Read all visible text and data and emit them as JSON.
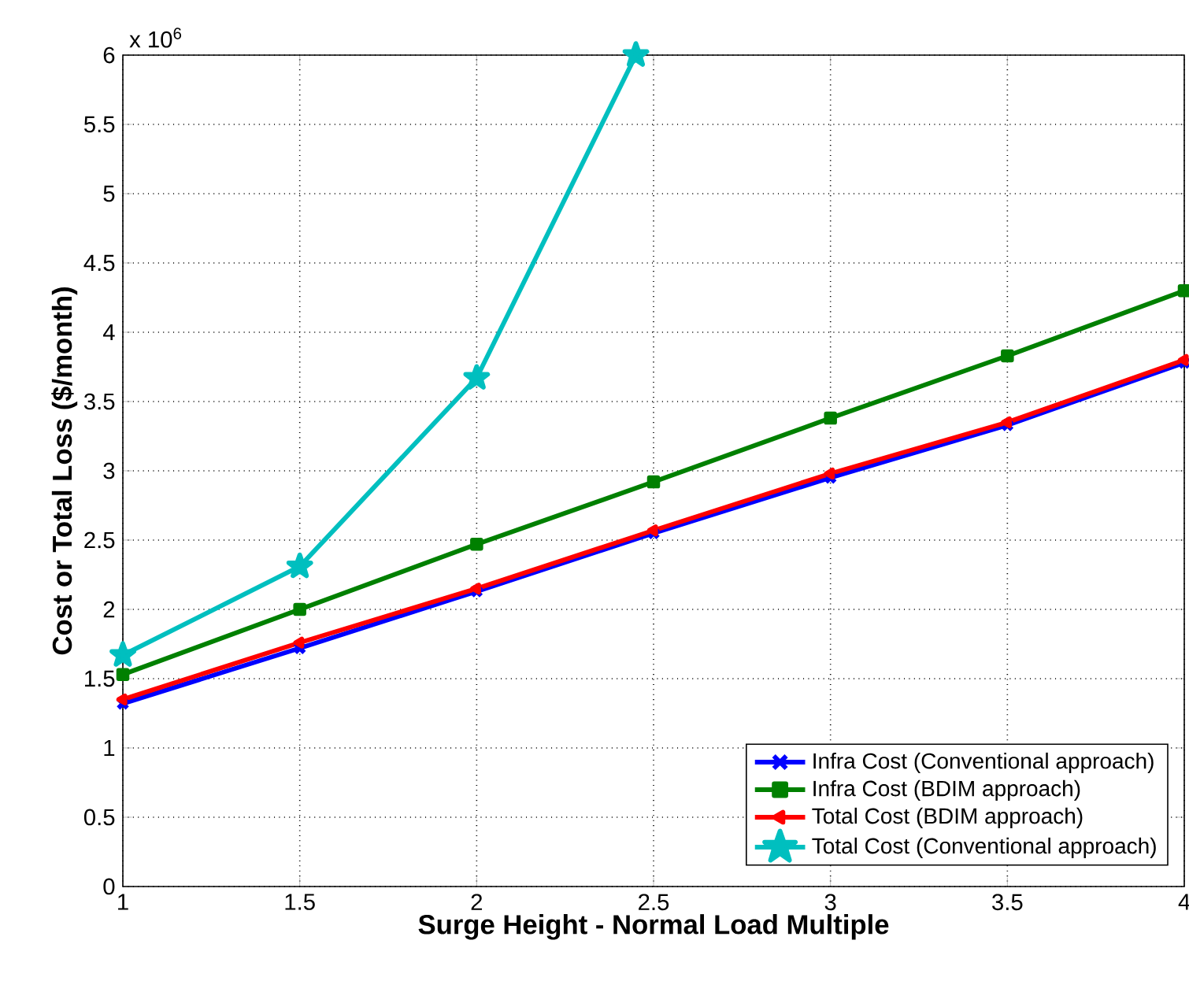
{
  "chart_data": {
    "type": "line",
    "xlabel": "Surge Height - Normal Load Multiple",
    "ylabel": "Cost or Total Loss ($/month)",
    "x": [
      1,
      1.5,
      2,
      2.5,
      3,
      3.5,
      4
    ],
    "series": [
      {
        "name": "Infra Cost (Conventional approach)",
        "color": "#0000ff",
        "marker": "cross",
        "values": [
          1.32,
          1.72,
          2.13,
          2.55,
          2.95,
          3.33,
          3.78
        ]
      },
      {
        "name": "Infra Cost (BDIM approach)",
        "color": "#008000",
        "marker": "square",
        "values": [
          1.53,
          2.0,
          2.47,
          2.92,
          3.38,
          3.83,
          4.3
        ]
      },
      {
        "name": "Total Cost (BDIM approach)",
        "color": "#ff0000",
        "marker": "triangle",
        "values": [
          1.35,
          1.76,
          2.15,
          2.57,
          2.98,
          3.35,
          3.8
        ]
      },
      {
        "name": "Total Cost (Conventional approach)",
        "color": "#00bfbf",
        "marker": "star",
        "x": [
          1,
          1.5,
          2,
          2.45
        ],
        "values": [
          1.67,
          2.31,
          3.67,
          6.0
        ]
      }
    ],
    "xlim": [
      1,
      4
    ],
    "xticks": [
      1,
      1.5,
      2,
      2.5,
      3,
      3.5,
      4
    ],
    "ylim": [
      0,
      6
    ],
    "yticks": [
      0,
      0.5,
      1,
      1.5,
      2,
      2.5,
      3,
      3.5,
      4,
      4.5,
      5,
      5.5,
      6
    ],
    "annotations": [
      "x 10$^{6}$"
    ],
    "grid": true,
    "legend": "bottom right",
    "line_style": "solid"
  }
}
